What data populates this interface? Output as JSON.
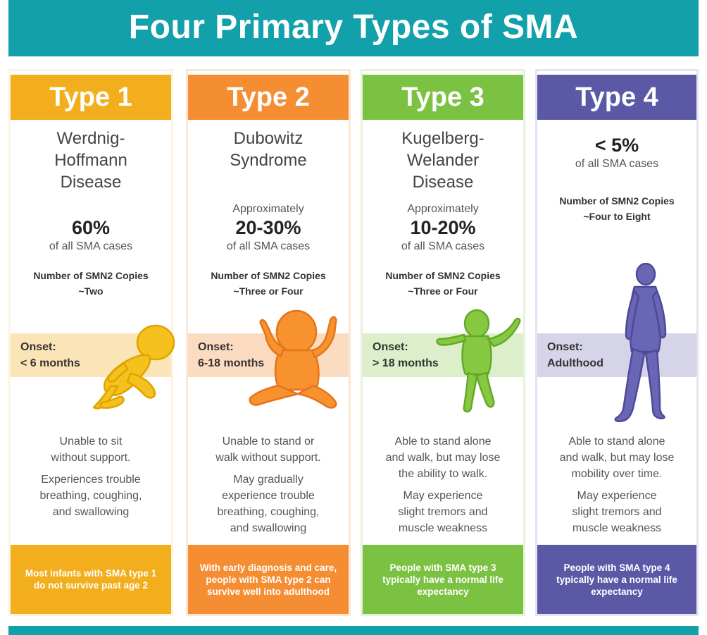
{
  "title": "Four Primary Types of SMA",
  "types": [
    {
      "label": "Type 1",
      "disease": [
        "Werdnig-",
        "Hoffmann",
        "Disease"
      ],
      "approx": "",
      "percent": "60%",
      "percent_sub": "of all SMA cases",
      "copies_label": "Number of SMN2 Copies",
      "copies_value": "~Two",
      "onset_label": "Onset:",
      "onset_value": "< 6 months",
      "desc1": [
        "Unable to sit",
        "without support."
      ],
      "desc2": [
        "Experiences trouble",
        "breathing, coughing,",
        "and swallowing"
      ],
      "note": "Most infants with SMA type 1 do not survive past age 2",
      "figure_icon": "lying-infant-icon",
      "color": "#f2ae1c",
      "band_color": "#fbe5b6"
    },
    {
      "label": "Type 2",
      "disease": [
        "Dubowitz",
        "Syndrome"
      ],
      "approx": "Approximately",
      "percent": "20-30%",
      "percent_sub": "of all SMA cases",
      "copies_label": "Number of SMN2 Copies",
      "copies_value": "~Three or Four",
      "onset_label": "Onset:",
      "onset_value": "6-18 months",
      "desc1": [
        "Unable to stand or",
        "walk without support."
      ],
      "desc2": [
        "May gradually",
        "experience trouble",
        "breathing, coughing,",
        "and swallowing"
      ],
      "note": "With early diagnosis and care, people with SMA type 2 can survive well into adulthood",
      "figure_icon": "sitting-baby-icon",
      "color": "#f58d32",
      "band_color": "#fcdcc0"
    },
    {
      "label": "Type 3",
      "disease": [
        "Kugelberg-",
        "Welander",
        "Disease"
      ],
      "approx": "Approximately",
      "percent": "10-20%",
      "percent_sub": "of all SMA cases",
      "copies_label": "Number of SMN2 Copies",
      "copies_value": "~Three or Four",
      "onset_label": "Onset:",
      "onset_value": "> 18 months",
      "desc1": [
        "Able to stand alone",
        "and walk, but may lose",
        "the ability to walk."
      ],
      "desc2": [
        "May experience",
        "slight tremors and",
        "muscle weakness"
      ],
      "note": "People with SMA type 3 typically have a normal life expectancy",
      "figure_icon": "standing-toddler-icon",
      "color": "#7cc242",
      "band_color": "#dcefca"
    },
    {
      "label": "Type 4",
      "disease": [],
      "approx": "",
      "percent": "< 5%",
      "percent_sub": "of all SMA cases",
      "copies_label": "Number of SMN2 Copies",
      "copies_value": "~Four to Eight",
      "onset_label": "Onset:",
      "onset_value": "Adulthood",
      "desc1": [
        "Able to stand alone",
        "and walk, but may lose",
        "mobility over time."
      ],
      "desc2": [
        "May experience",
        "slight tremors and",
        "muscle weakness"
      ],
      "note": "People with SMA type 4 typically have a normal life expectancy",
      "figure_icon": "walking-adult-icon",
      "color": "#5b58a6",
      "band_color": "#d5d4e9"
    }
  ]
}
